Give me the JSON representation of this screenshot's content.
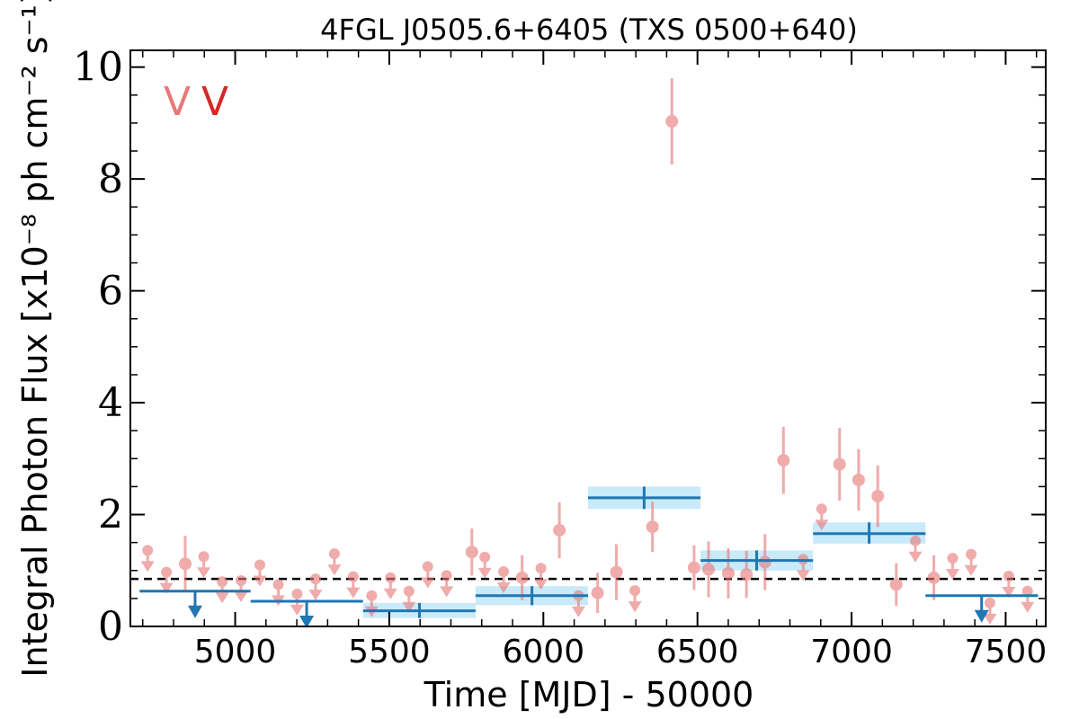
{
  "chart_data": {
    "type": "scatter",
    "title": "4FGL J0505.6+6405 (TXS 0500+640)",
    "xlabel": "Time [MJD] - 50000",
    "ylabel": "Integral Photon Flux [x10⁻⁸ ph cm⁻² s⁻¹]",
    "xlim": [
      4660,
      7630
    ],
    "ylim": [
      0,
      10.3
    ],
    "x_ticks": [
      5000,
      5500,
      6000,
      6500,
      7000,
      7500
    ],
    "y_ticks": [
      0,
      2,
      4,
      6,
      8,
      10
    ],
    "legend": {
      "placement": "top-left",
      "entries": [
        "V",
        "V"
      ]
    },
    "reference_line": {
      "y": 0.85,
      "style": "dashed"
    },
    "colors": {
      "fine_bins": "#e87878",
      "coarse_bins": "#1f77b4",
      "coarse_band": "#bfe6f8",
      "reference": "#000000"
    },
    "series": [
      {
        "name": "V",
        "color": "#e87878",
        "bin_width_days": 60,
        "detections": [
          {
            "x": 4838,
            "y": 1.12,
            "yerr": 0.5
          },
          {
            "x": 5768,
            "y": 1.33,
            "yerr": 0.42
          },
          {
            "x": 5931,
            "y": 0.87,
            "yerr": 0.4
          },
          {
            "x": 6052,
            "y": 1.72,
            "yerr": 0.5
          },
          {
            "x": 6176,
            "y": 0.6,
            "yerr": 0.36
          },
          {
            "x": 6237,
            "y": 0.97,
            "yerr": 0.5
          },
          {
            "x": 6354,
            "y": 1.78,
            "yerr": 0.45
          },
          {
            "x": 6417,
            "y": 9.03,
            "yerr": 0.77
          },
          {
            "x": 6489,
            "y": 1.05,
            "yerr": 0.4
          },
          {
            "x": 6536,
            "y": 1.02,
            "yerr": 0.5
          },
          {
            "x": 6600,
            "y": 0.95,
            "yerr": 0.45
          },
          {
            "x": 6659,
            "y": 0.93,
            "yerr": 0.42
          },
          {
            "x": 6719,
            "y": 1.15,
            "yerr": 0.5
          },
          {
            "x": 6779,
            "y": 2.97,
            "yerr": 0.6
          },
          {
            "x": 6961,
            "y": 2.9,
            "yerr": 0.65
          },
          {
            "x": 7023,
            "y": 2.62,
            "yerr": 0.55
          },
          {
            "x": 7085,
            "y": 2.33,
            "yerr": 0.55
          },
          {
            "x": 7145,
            "y": 0.75,
            "yerr": 0.38
          },
          {
            "x": 7267,
            "y": 0.87,
            "yerr": 0.4
          }
        ],
        "upper_limits": [
          {
            "x": 4716,
            "y": 1.36
          },
          {
            "x": 4777,
            "y": 0.97
          },
          {
            "x": 4898,
            "y": 1.25
          },
          {
            "x": 4958,
            "y": 0.8
          },
          {
            "x": 5019,
            "y": 0.82
          },
          {
            "x": 5080,
            "y": 1.1
          },
          {
            "x": 5140,
            "y": 0.75
          },
          {
            "x": 5201,
            "y": 0.58
          },
          {
            "x": 5261,
            "y": 0.85
          },
          {
            "x": 5322,
            "y": 1.3
          },
          {
            "x": 5383,
            "y": 0.89
          },
          {
            "x": 5443,
            "y": 0.55
          },
          {
            "x": 5504,
            "y": 0.87
          },
          {
            "x": 5564,
            "y": 0.63
          },
          {
            "x": 5625,
            "y": 1.07
          },
          {
            "x": 5686,
            "y": 0.91
          },
          {
            "x": 5810,
            "y": 1.24
          },
          {
            "x": 5871,
            "y": 0.98
          },
          {
            "x": 5992,
            "y": 1.04
          },
          {
            "x": 6114,
            "y": 0.55
          },
          {
            "x": 6297,
            "y": 0.64
          },
          {
            "x": 6843,
            "y": 1.2
          },
          {
            "x": 6903,
            "y": 2.1
          },
          {
            "x": 7207,
            "y": 1.53
          },
          {
            "x": 7328,
            "y": 1.22
          },
          {
            "x": 7388,
            "y": 1.29
          },
          {
            "x": 7449,
            "y": 0.42
          },
          {
            "x": 7510,
            "y": 0.9
          },
          {
            "x": 7571,
            "y": 0.63
          }
        ]
      },
      {
        "name": "V",
        "color": "#1f77b4",
        "detections": [
          {
            "x0": 5415,
            "x1": 5780,
            "x": 5598,
            "y": 0.28,
            "ylo": 0.15,
            "yhi": 0.42
          },
          {
            "x0": 5780,
            "x1": 6145,
            "x": 5963,
            "y": 0.55,
            "ylo": 0.38,
            "yhi": 0.72
          },
          {
            "x0": 6145,
            "x1": 6510,
            "x": 6327,
            "y": 2.3,
            "ylo": 2.1,
            "yhi": 2.5
          },
          {
            "x0": 6510,
            "x1": 6875,
            "x": 6692,
            "y": 1.18,
            "ylo": 1.0,
            "yhi": 1.36
          },
          {
            "x0": 6875,
            "x1": 7240,
            "x": 7057,
            "y": 1.66,
            "ylo": 1.48,
            "yhi": 1.86
          }
        ],
        "upper_limits": [
          {
            "x0": 4690,
            "x1": 5050,
            "x": 4870,
            "y": 0.63
          },
          {
            "x0": 5050,
            "x1": 5415,
            "x": 5232,
            "y": 0.45
          },
          {
            "x0": 7240,
            "x1": 7605,
            "x": 7422,
            "y": 0.55
          }
        ]
      }
    ]
  }
}
